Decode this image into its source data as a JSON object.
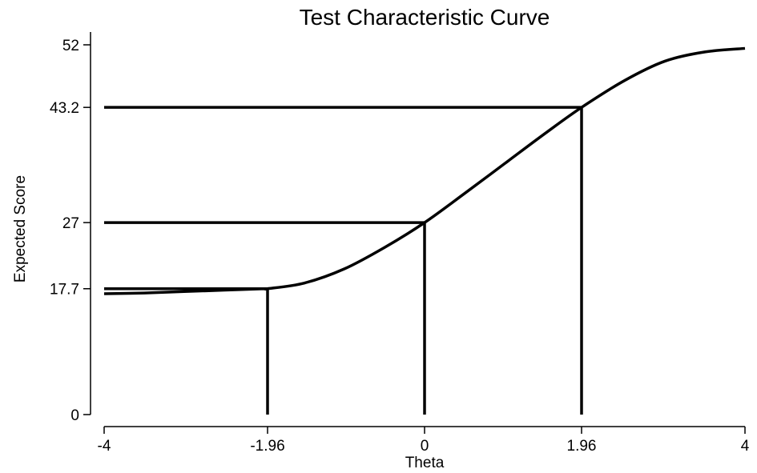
{
  "chart_data": {
    "type": "line",
    "title": "Test Characteristic Curve",
    "xlabel": "Theta",
    "ylabel": "Expected Score",
    "xlim": [
      -4,
      4
    ],
    "ylim": [
      0,
      52
    ],
    "x_ticks": [
      -4,
      -1.96,
      0,
      1.96,
      4
    ],
    "x_tick_labels": [
      "-4",
      "-1.96",
      "0",
      "1.96",
      "4"
    ],
    "y_ticks": [
      0,
      17.7,
      27,
      43.2,
      52
    ],
    "y_tick_labels": [
      "0",
      "17.7",
      "27",
      "43.2",
      "52"
    ],
    "grid": false,
    "series": [
      {
        "x": [
          -4,
          -3.5,
          -3,
          -2.5,
          -2,
          -1.96,
          -1.5,
          -1,
          -0.5,
          0,
          0.5,
          1,
          1.5,
          1.96,
          2.5,
          3,
          3.5,
          4
        ],
        "values": [
          17.0,
          17.1,
          17.3,
          17.5,
          17.7,
          17.7,
          18.5,
          20.5,
          23.5,
          27.0,
          31.1,
          35.3,
          39.5,
          43.2,
          47.0,
          49.7,
          51.0,
          51.5
        ]
      }
    ],
    "reference_lines": [
      {
        "x": -1.96,
        "y": 17.7
      },
      {
        "x": 0,
        "y": 27
      },
      {
        "x": 1.96,
        "y": 43.2
      }
    ],
    "line_color": "#000000"
  }
}
